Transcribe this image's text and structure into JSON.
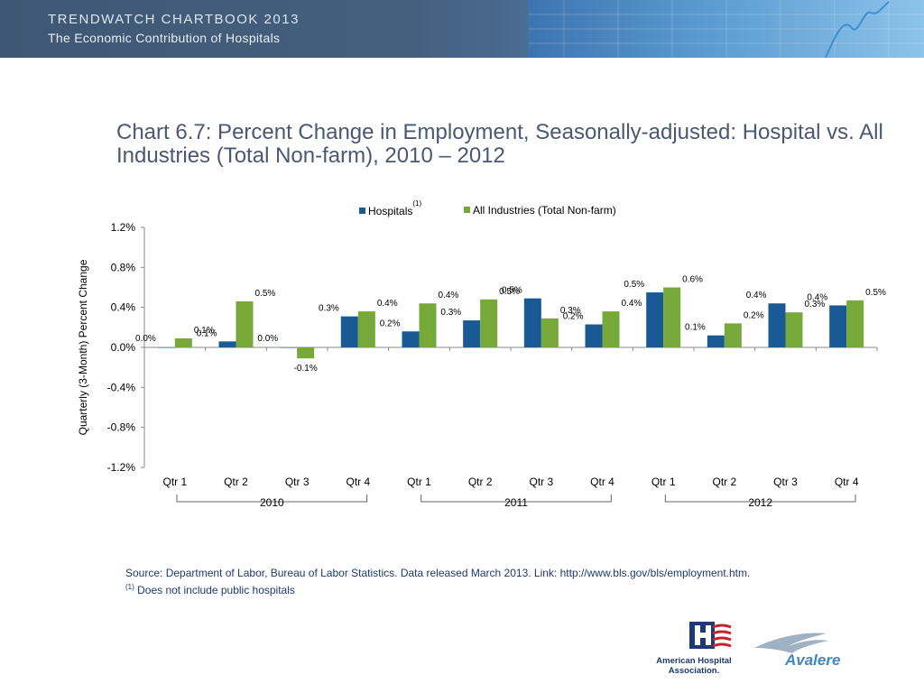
{
  "header": {
    "line1": "TRENDWATCH CHARTBOOK 2013",
    "line2": "The Economic Contribution of Hospitals"
  },
  "chart_data": {
    "type": "bar",
    "title": "Chart 6.7: Percent Change in Employment, Seasonally-adjusted: Hospital vs. All Industries (Total Non-farm), 2010 – 2012",
    "ylabel": "Quarterly (3-Month) Percent Change",
    "xlabel": "",
    "ylim": [
      -1.2,
      1.2
    ],
    "yticks": [
      "1.2%",
      "0.8%",
      "0.4%",
      "0.0%",
      "-0.4%",
      "-0.8%",
      "-1.2%"
    ],
    "categories": [
      "Qtr 1",
      "Qtr 2",
      "Qtr 3",
      "Qtr 4",
      "Qtr 1",
      "Qtr 2",
      "Qtr 3",
      "Qtr 4",
      "Qtr 1",
      "Qtr 2",
      "Qtr 3",
      "Qtr 4"
    ],
    "groups": [
      {
        "label": "2010",
        "from": 0,
        "to": 3
      },
      {
        "label": "2011",
        "from": 4,
        "to": 7
      },
      {
        "label": "2012",
        "from": 8,
        "to": 11
      }
    ],
    "legend_position": "top-center",
    "grid": false,
    "series": [
      {
        "name": "Hospitals",
        "footnote_mark": "(1)",
        "color": "#1a5a94",
        "values": [
          0.0,
          0.06,
          0.0,
          0.31,
          0.16,
          0.27,
          0.49,
          0.23,
          0.55,
          0.12,
          0.44,
          0.42
        ],
        "labels": [
          "0.0%",
          "0.1%",
          "0.0%",
          "0.3%",
          "0.2%",
          "0.3%",
          "0.5%",
          "0.2%",
          "0.5%",
          "0.1%",
          "0.4%",
          "0.4%"
        ]
      },
      {
        "name": "All Industries (Total Non-farm)",
        "color": "#76a83a",
        "values": [
          0.09,
          0.46,
          -0.11,
          0.36,
          0.44,
          0.48,
          0.29,
          0.36,
          0.6,
          0.24,
          0.35,
          0.47
        ],
        "labels": [
          "0.1%",
          "0.5%",
          "-0.1%",
          "0.4%",
          "0.4%",
          "0.5%",
          "0.3%",
          "0.4%",
          "0.6%",
          "0.2%",
          "0.3%",
          "0.5%"
        ]
      }
    ]
  },
  "source": {
    "text": "Source: Department of Labor, Bureau of Labor Statistics. Data released March 2013. Link: http://www.bls.gov/bls/employment.htm.",
    "footnote_mark": "(1)",
    "footnote": " Does not include public hospitals"
  },
  "logos": {
    "aha_line1": "American Hospital",
    "aha_line2": "Association.",
    "avalere": "Avalere"
  }
}
